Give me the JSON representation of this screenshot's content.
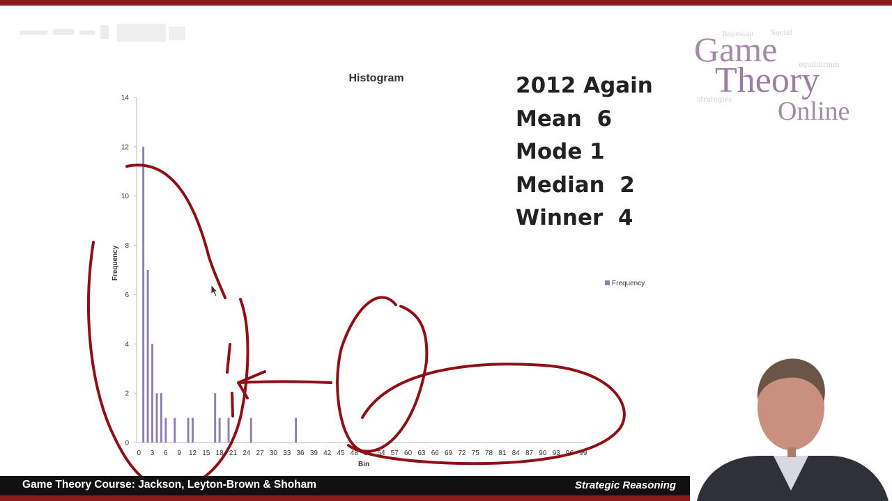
{
  "colors": {
    "accent": "#8b1a1a",
    "bar": "#8e7fb3",
    "ink": "#8e0f14",
    "footer": "#111111"
  },
  "stats": {
    "lines": [
      "2012 Again",
      "Mean  6",
      "Mode 1",
      "Median  2",
      "Winner  4"
    ]
  },
  "logo": {
    "line1": "Game",
    "line2": "Theory",
    "line3": "Online",
    "background_words": [
      "equilibrium",
      "strategies",
      "Social",
      "Bayesian"
    ]
  },
  "footer": {
    "course": "Game Theory Course: Jackson, Leyton-Brown & Shoham",
    "section": "Strategic Reasoning"
  },
  "chart_data": {
    "type": "bar",
    "title": "Histogram",
    "xlabel": "Bin",
    "ylabel": "Frequency",
    "ylim": [
      0,
      14
    ],
    "yticks": [
      0,
      2,
      4,
      6,
      8,
      10,
      12,
      14
    ],
    "xticks": [
      "0",
      "3",
      "6",
      "9",
      "12",
      "15",
      "18",
      "21",
      "24",
      "27",
      "30",
      "33",
      "36",
      "39",
      "42",
      "45",
      "48",
      "51",
      "54",
      "57",
      "60",
      "63",
      "66",
      "69",
      "72",
      "75",
      "78",
      "81",
      "84",
      "87",
      "90",
      "93",
      "96",
      "99"
    ],
    "grid": false,
    "legend_position": "right",
    "series": [
      {
        "name": "Frequency",
        "bins": [
          1,
          2,
          3,
          4,
          5,
          6,
          8,
          11,
          12,
          17,
          18,
          20,
          25,
          35
        ],
        "values": [
          12,
          7,
          4,
          2,
          2,
          1,
          1,
          1,
          1,
          2,
          1,
          1,
          1,
          1
        ]
      }
    ]
  }
}
